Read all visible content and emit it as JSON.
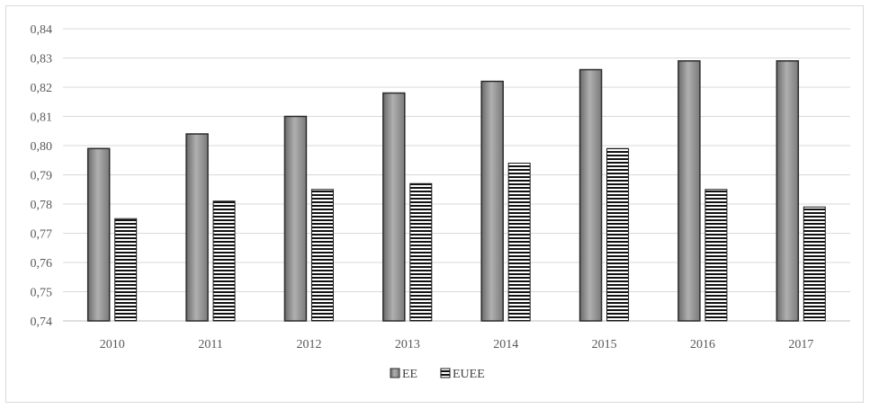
{
  "chart_data": {
    "type": "bar",
    "title": "",
    "xlabel": "",
    "ylabel": "",
    "categories": [
      "2010",
      "2011",
      "2012",
      "2013",
      "2014",
      "2015",
      "2016",
      "2017"
    ],
    "series": [
      {
        "name": "EE",
        "values": [
          0.799,
          0.804,
          0.81,
          0.818,
          0.822,
          0.826,
          0.829,
          0.829
        ],
        "style": "solid-gray",
        "color": "#8c8c8c"
      },
      {
        "name": "EUEE",
        "values": [
          0.775,
          0.781,
          0.785,
          0.787,
          0.794,
          0.799,
          0.785,
          0.779
        ],
        "style": "horizontal-stripes",
        "color": "#000000"
      }
    ],
    "ylim": [
      0.74,
      0.84
    ],
    "yticks": [
      "0,74",
      "0,75",
      "0,76",
      "0,77",
      "0,78",
      "0,79",
      "0,80",
      "0,81",
      "0,82",
      "0,83",
      "0,84"
    ],
    "grid": true,
    "legend": "bottom"
  },
  "colors": {
    "gridline": "#d9d9d9",
    "axis": "#bfbfbf",
    "text": "#595959"
  }
}
